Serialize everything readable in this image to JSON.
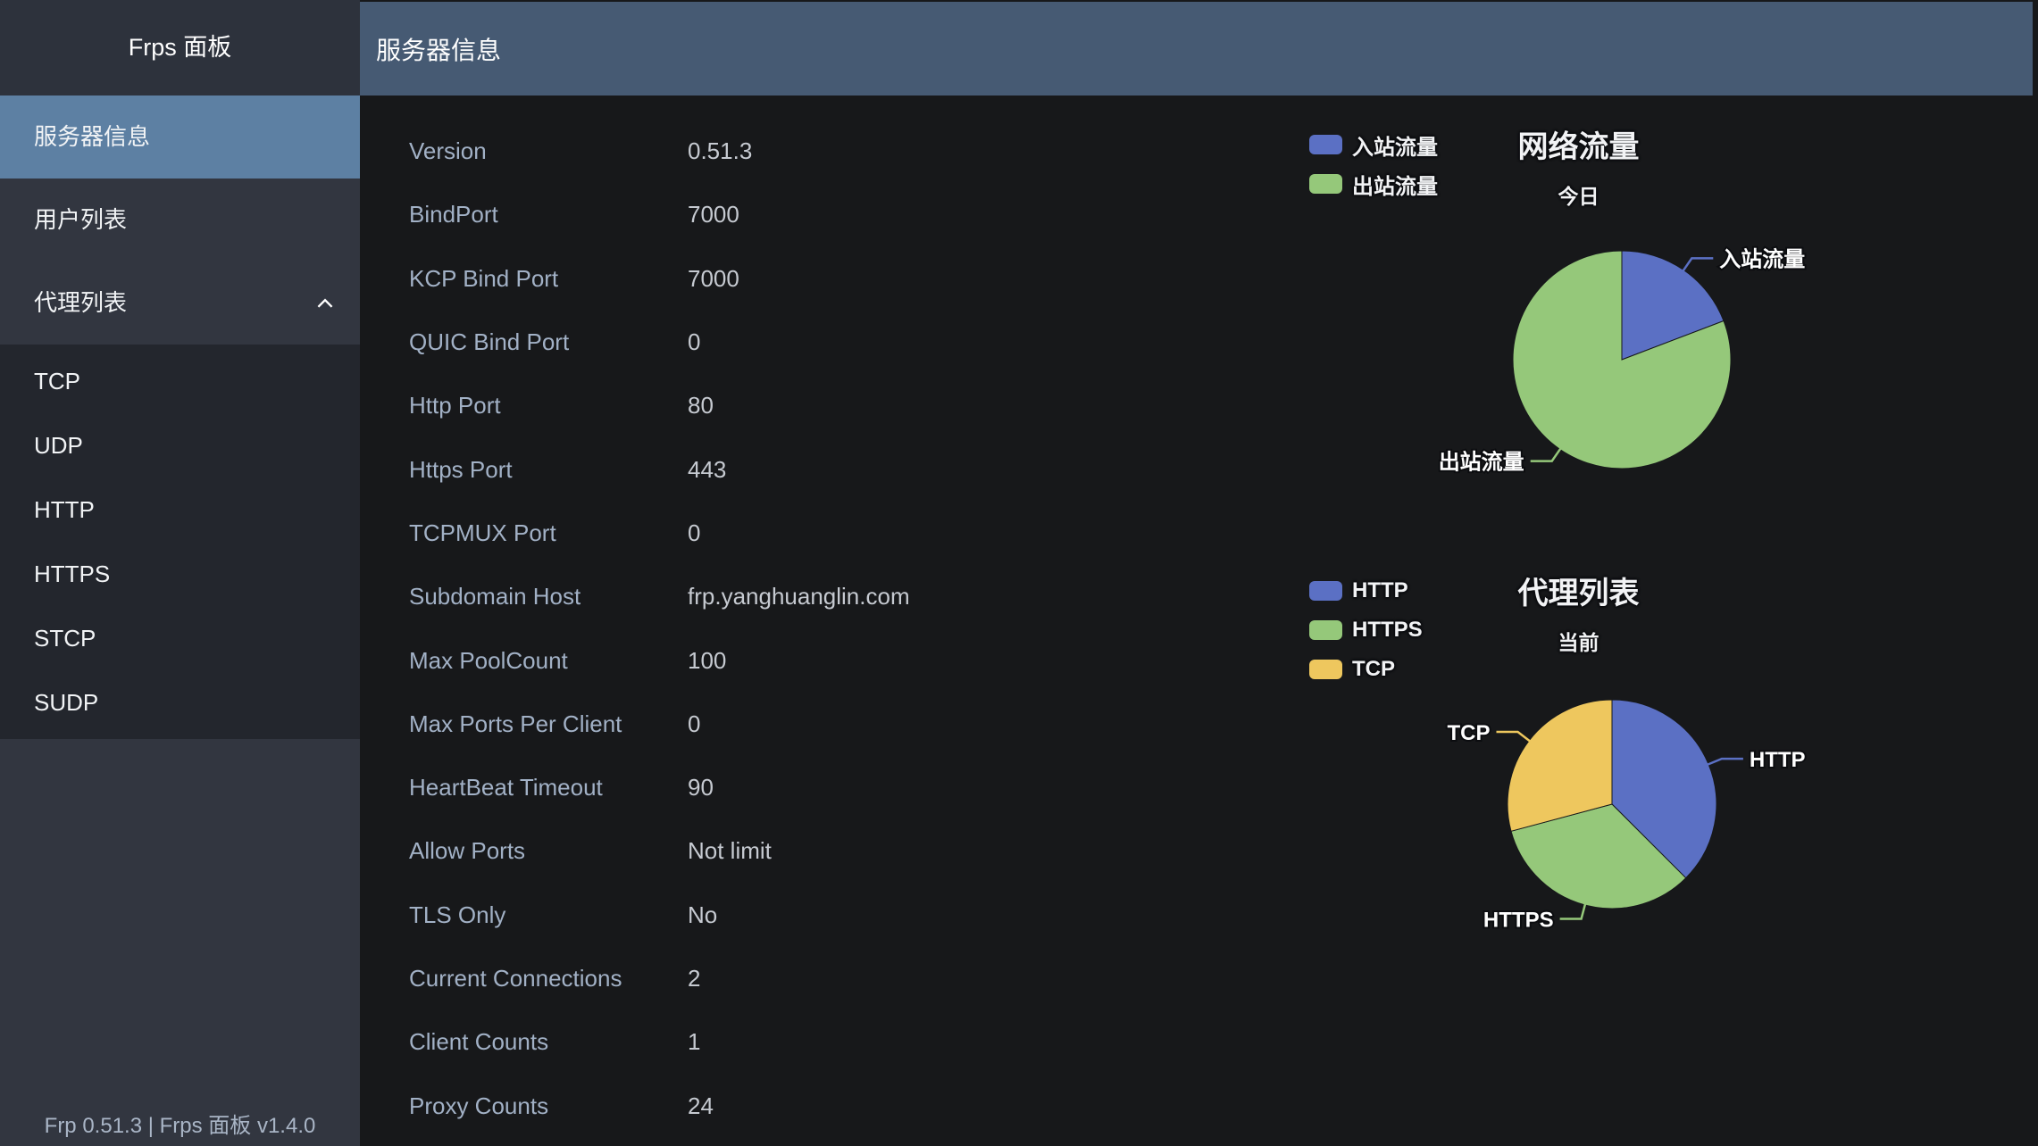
{
  "app": {
    "sidebar_title": "Frps 面板",
    "footer": "Frp 0.51.3 | Frps 面板 v1.4.0"
  },
  "header": {
    "title": "服务器信息"
  },
  "sidebar": {
    "items": [
      {
        "label": "服务器信息",
        "active": true
      },
      {
        "label": "用户列表",
        "active": false
      },
      {
        "label": "代理列表",
        "active": false,
        "expanded": true,
        "children": [
          "TCP",
          "UDP",
          "HTTP",
          "HTTPS",
          "STCP",
          "SUDP"
        ]
      }
    ]
  },
  "server_info": {
    "rows": [
      {
        "label": "Version",
        "value": "0.51.3"
      },
      {
        "label": "BindPort",
        "value": "7000"
      },
      {
        "label": "KCP Bind Port",
        "value": "7000"
      },
      {
        "label": "QUIC Bind Port",
        "value": "0"
      },
      {
        "label": "Http Port",
        "value": "80"
      },
      {
        "label": "Https Port",
        "value": "443"
      },
      {
        "label": "TCPMUX Port",
        "value": "0"
      },
      {
        "label": "Subdomain Host",
        "value": "frp.yanghuanglin.com"
      },
      {
        "label": "Max PoolCount",
        "value": "100"
      },
      {
        "label": "Max Ports Per Client",
        "value": "0"
      },
      {
        "label": "HeartBeat Timeout",
        "value": "90"
      },
      {
        "label": "Allow Ports",
        "value": "Not limit"
      },
      {
        "label": "TLS Only",
        "value": "No"
      },
      {
        "label": "Current Connections",
        "value": "2"
      },
      {
        "label": "Client Counts",
        "value": "1"
      },
      {
        "label": "Proxy Counts",
        "value": "24"
      }
    ]
  },
  "chart_data": [
    {
      "type": "pie",
      "title": "网络流量",
      "subtitle": "今日",
      "legend_position": "top-left",
      "legend": [
        "入站流量",
        "出站流量"
      ],
      "series": [
        {
          "name": "入站流量",
          "value": 19.2,
          "color": "#5b70c4"
        },
        {
          "name": "出站流量",
          "value": 80.8,
          "color": "#95c87a"
        }
      ],
      "unit": "percent-of-traffic-today"
    },
    {
      "type": "pie",
      "title": "代理列表",
      "subtitle": "当前",
      "legend_position": "top-left",
      "legend": [
        "HTTP",
        "HTTPS",
        "TCP"
      ],
      "series": [
        {
          "name": "HTTP",
          "value": 9,
          "color": "#5b70c4"
        },
        {
          "name": "HTTPS",
          "value": 8,
          "color": "#95c87a"
        },
        {
          "name": "TCP",
          "value": 7,
          "color": "#eec75e"
        }
      ],
      "unit": "proxies"
    }
  ],
  "theme": {
    "content_bg": "#17181a",
    "header_bg": "#465a73",
    "sidebar_bg": "#323640",
    "sidebar_title_bg": "#2d323c",
    "sidebar_active_bg": "#5d80a3",
    "submenu_bg": "#23262d",
    "footer_text": "#a9b5c6",
    "label_text": "#a2b1c6",
    "value_text": "#c6cad1",
    "chart_text": "#f2f3f5"
  }
}
